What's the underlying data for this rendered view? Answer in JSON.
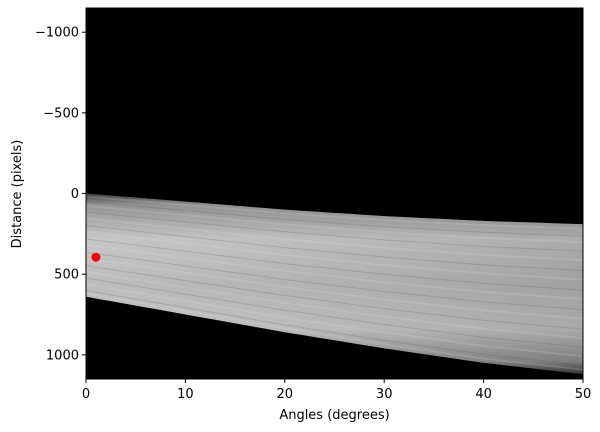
{
  "chart_data": {
    "type": "heatmap",
    "xlabel": "Angles (degrees)",
    "ylabel": "Distance (pixels)",
    "xlim": [
      0,
      50
    ],
    "ylim": [
      1150,
      -1150
    ],
    "y_inverted": true,
    "grid": false,
    "colormap": "gray",
    "background_color": "#000000",
    "x_ticks": [
      0,
      10,
      20,
      30,
      40,
      50
    ],
    "x_tick_labels": [
      "0",
      "10",
      "20",
      "30",
      "40",
      "50"
    ],
    "y_ticks": [
      -1000,
      -500,
      0,
      500,
      1000
    ],
    "y_tick_labels": [
      "−1000",
      "−500",
      "0",
      "500",
      "1000"
    ],
    "band": {
      "upper_edge": [
        {
          "x": 0,
          "y": 0
        },
        {
          "x": 10,
          "y": 50
        },
        {
          "x": 20,
          "y": 100
        },
        {
          "x": 30,
          "y": 140
        },
        {
          "x": 40,
          "y": 170
        },
        {
          "x": 50,
          "y": 190
        }
      ],
      "lower_edge": [
        {
          "x": 0,
          "y": 640
        },
        {
          "x": 10,
          "y": 750
        },
        {
          "x": 20,
          "y": 860
        },
        {
          "x": 30,
          "y": 960
        },
        {
          "x": 40,
          "y": 1050
        },
        {
          "x": 50,
          "y": 1120
        }
      ]
    },
    "marker": {
      "x": 1,
      "y": 395,
      "color": "#ff0000"
    }
  }
}
